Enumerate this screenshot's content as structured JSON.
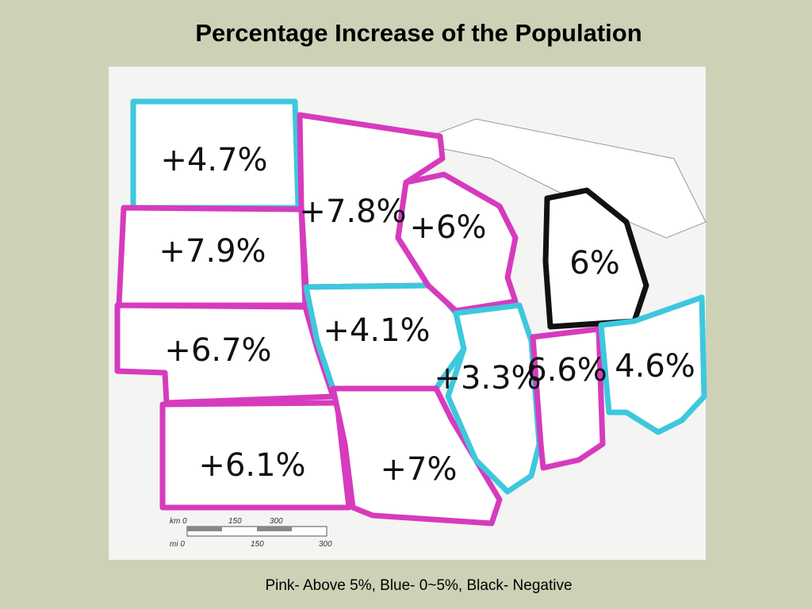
{
  "header": {
    "title": "Percentage Increase of the Population"
  },
  "map": {
    "regions": [
      {
        "label": "+4.7%"
      },
      {
        "label": "+7.9%"
      },
      {
        "label": "+6.7%"
      },
      {
        "label": "+6.1%"
      },
      {
        "label": "+7.8%"
      },
      {
        "label": "+4.1%"
      },
      {
        "label": "+6%"
      },
      {
        "label": "+7%"
      },
      {
        "label": "+3.3%"
      },
      {
        "label": "6.6%"
      },
      {
        "label": "6%"
      },
      {
        "label": "4.6%"
      }
    ],
    "scale": {
      "km": [
        "km 0",
        "150",
        "300"
      ],
      "mi": [
        "mi 0",
        "150",
        "300"
      ]
    }
  },
  "caption": "Pink- Above 5%, Blue- 0~5%, Black- Negative"
}
